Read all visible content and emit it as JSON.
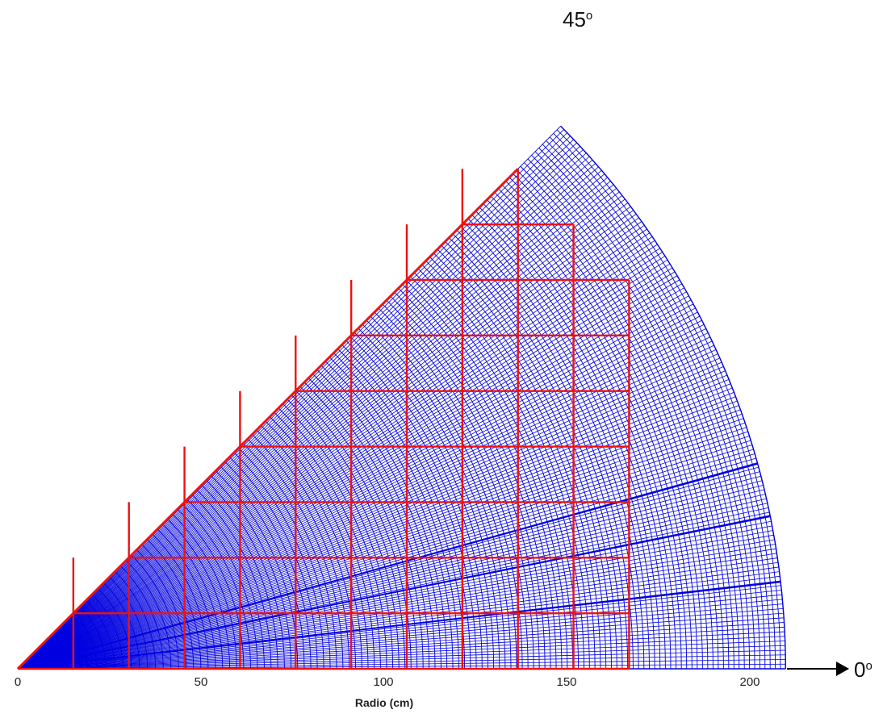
{
  "axis": {
    "title": "Radio (cm)",
    "range": [
      0,
      210
    ],
    "ticks": [
      "0",
      "50",
      "100",
      "150",
      "200"
    ]
  },
  "angles": {
    "top": "45",
    "right": "0",
    "degree_symbol": "o"
  },
  "colors": {
    "polar_mesh": "#0000e0",
    "cartesian_mesh": "#ee1111",
    "text": "#222222"
  },
  "chart_data": {
    "type": "mesh-diagram",
    "sector": {
      "angle_min_deg": 0,
      "angle_max_deg": 45,
      "radius_max_cm": 210
    },
    "cartesian_grid": {
      "x_lines_cm": [
        0,
        15.2,
        30.4,
        45.6,
        60.8,
        76.0,
        91.2,
        106.4,
        121.6,
        136.8,
        152.0,
        167.2
      ],
      "y_lines_cm": [
        0,
        15.2,
        30.4,
        45.6,
        60.8,
        76.0,
        91.2,
        106.4,
        121.6,
        136.8
      ],
      "column_tops_cm": [
        15.2,
        30.4,
        45.6,
        60.8,
        76.0,
        91.2,
        106.4,
        121.6,
        136.8,
        121.6,
        106.4
      ]
    }
  }
}
